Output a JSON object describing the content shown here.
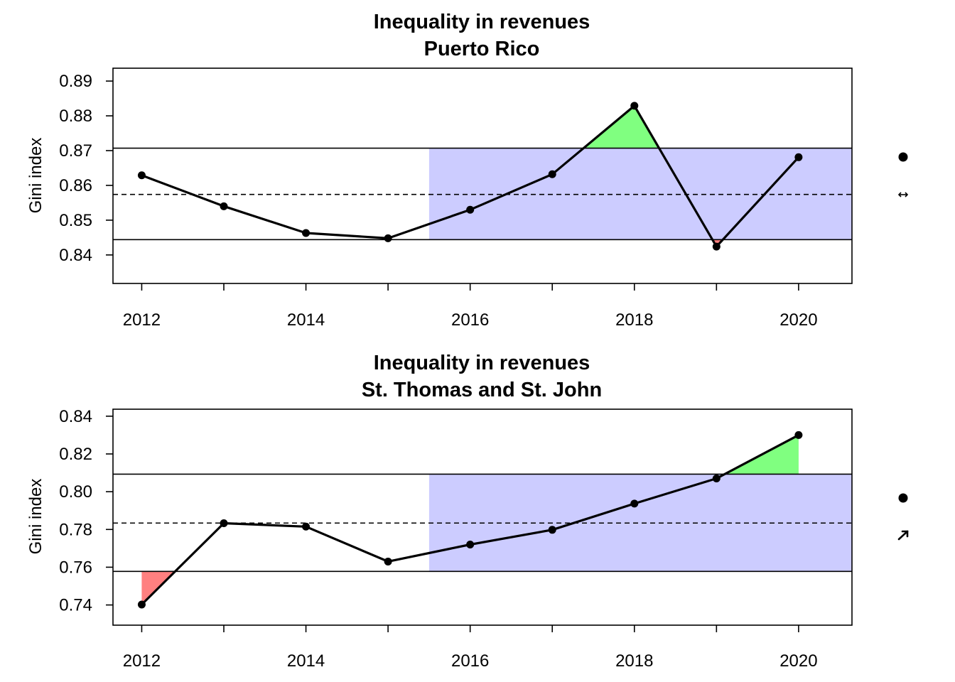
{
  "chart_data": [
    {
      "type": "line",
      "title": "Inequality in revenues",
      "subtitle": "Puerto Rico",
      "xlabel": "",
      "ylabel": "Gini index",
      "x": [
        2012,
        2013,
        2014,
        2015,
        2016,
        2017,
        2018,
        2019,
        2020
      ],
      "values": [
        0.8629,
        0.854,
        0.8463,
        0.8448,
        0.853,
        0.8632,
        0.8829,
        0.8424,
        0.8681
      ],
      "xlim": [
        2011.65,
        2020.65
      ],
      "ylim": [
        0.8318,
        0.8937
      ],
      "xticks": [
        2012,
        2014,
        2016,
        2018,
        2020
      ],
      "yticks": [
        0.84,
        0.85,
        0.86,
        0.87,
        0.88,
        0.89
      ],
      "ytick_labels": [
        "0.84",
        "0.85",
        "0.86",
        "0.87",
        "0.88",
        "0.89"
      ],
      "mean": 0.8574,
      "upper_limit": 0.8707,
      "lower_limit": 0.8444,
      "band_start_x": 2015.5,
      "grid": false,
      "colors": {
        "band": "#ccccff",
        "above": "#80ff80",
        "below": "#ff8080",
        "line": "#000000"
      },
      "side_icons": [
        "filled-dot-icon",
        "left-right-arrow-icon"
      ]
    },
    {
      "type": "line",
      "title": "Inequality in revenues",
      "subtitle": "St. Thomas and St. John",
      "xlabel": "",
      "ylabel": "Gini index",
      "x": [
        2012,
        2013,
        2014,
        2015,
        2016,
        2017,
        2018,
        2019,
        2020
      ],
      "values": [
        0.7402,
        0.7833,
        0.7815,
        0.763,
        0.772,
        0.7798,
        0.7937,
        0.807,
        0.83
      ],
      "xlim": [
        2011.65,
        2020.65
      ],
      "ylim": [
        0.7293,
        0.8437
      ],
      "xticks": [
        2012,
        2014,
        2016,
        2018,
        2020
      ],
      "yticks": [
        0.74,
        0.76,
        0.78,
        0.8,
        0.82,
        0.84
      ],
      "ytick_labels": [
        "0.74",
        "0.76",
        "0.78",
        "0.80",
        "0.82",
        "0.84"
      ],
      "mean": 0.7834,
      "upper_limit": 0.8093,
      "lower_limit": 0.7578,
      "band_start_x": 2015.5,
      "grid": false,
      "colors": {
        "band": "#ccccff",
        "above": "#80ff80",
        "below": "#ff8080",
        "line": "#000000"
      },
      "side_icons": [
        "filled-dot-icon",
        "up-right-arrow-icon"
      ]
    }
  ]
}
